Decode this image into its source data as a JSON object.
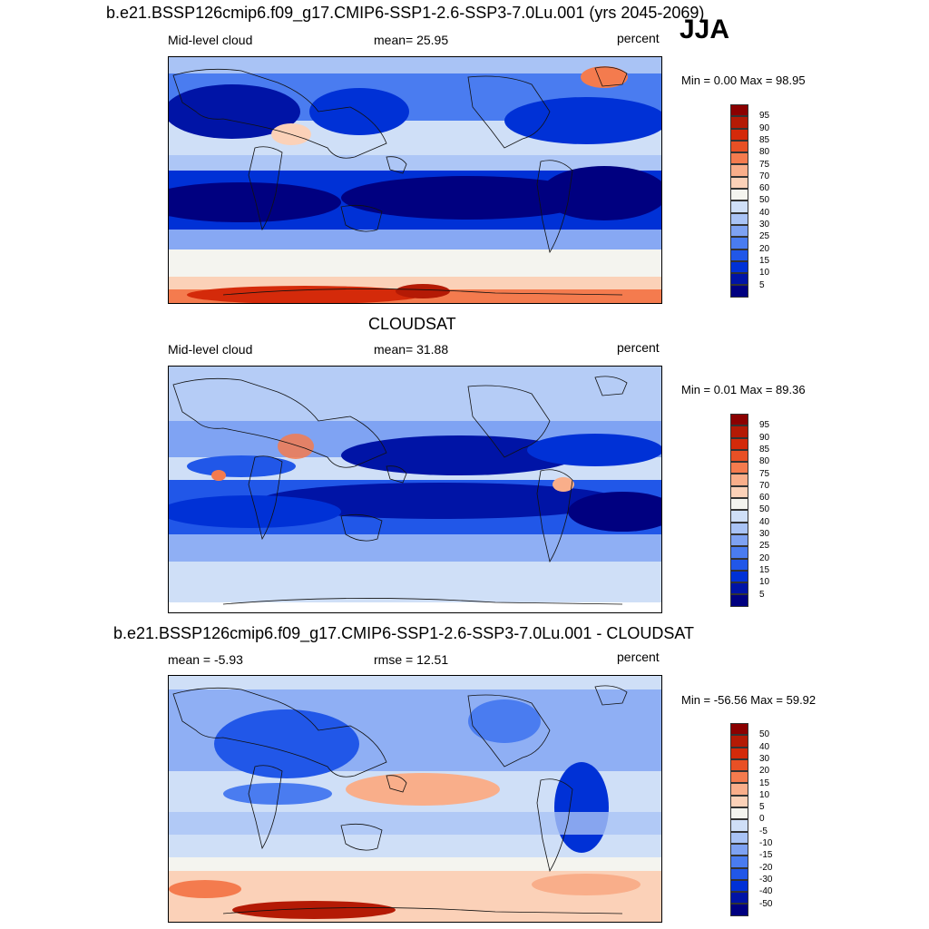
{
  "season": "JJA",
  "colors": {
    "ramp": [
      "#000080",
      "#0014a6",
      "#0031d6",
      "#2157e8",
      "#4a7cf0",
      "#7ea2f2",
      "#a9c3f5",
      "#cfdff7",
      "#f4f4ef",
      "#fbd1b8",
      "#f9ae8a",
      "#f47b4e",
      "#e85025",
      "#d42a0a",
      "#b41a05",
      "#8b0000"
    ],
    "diff_ramp": [
      "#000080",
      "#0014a6",
      "#0031d6",
      "#2157e8",
      "#4a7cf0",
      "#7ea2f2",
      "#a9c3f5",
      "#cfdff7",
      "#f4f4ef",
      "#fbd1b8",
      "#f9ae8a",
      "#f47b4e",
      "#e85025",
      "#d42a0a",
      "#b41a05",
      "#8b0000"
    ],
    "coast": "#111111"
  },
  "panels": [
    {
      "title": "b.e21.BSSP126cmip6.f09_g17.CMIP6-SSP1-2.6-SSP3-7.0Lu.001 (yrs 2045-2069)",
      "left_label": "Mid-level cloud",
      "center_label": "mean=  25.95",
      "right_label": "percent",
      "minmax": "Min =   0.00 Max =  98.95",
      "colorbar_labels": [
        "95",
        "90",
        "85",
        "80",
        "75",
        "70",
        "60",
        "50",
        "40",
        "30",
        "25",
        "20",
        "15",
        "10",
        "5"
      ],
      "pattern": "model"
    },
    {
      "title": "CLOUDSAT",
      "left_label": "Mid-level cloud",
      "center_label": "mean=  31.88",
      "right_label": "percent",
      "minmax": "Min =   0.01 Max =  89.36",
      "colorbar_labels": [
        "95",
        "90",
        "85",
        "80",
        "75",
        "70",
        "60",
        "50",
        "40",
        "30",
        "25",
        "20",
        "15",
        "10",
        "5"
      ],
      "pattern": "obs"
    },
    {
      "title": "b.e21.BSSP126cmip6.f09_g17.CMIP6-SSP1-2.6-SSP3-7.0Lu.001 - CLOUDSAT",
      "left_label": "mean =  -5.93",
      "center_label": "rmse =  12.51",
      "right_label": "percent",
      "minmax": "Min = -56.56 Max =  59.92",
      "colorbar_labels": [
        "50",
        "40",
        "30",
        "20",
        "15",
        "10",
        "5",
        "0",
        "-5",
        "-10",
        "-15",
        "-20",
        "-30",
        "-40",
        "-50"
      ],
      "pattern": "diff"
    }
  ]
}
